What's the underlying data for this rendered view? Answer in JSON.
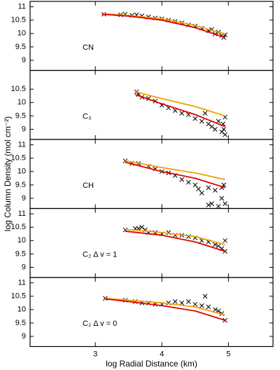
{
  "chart_data": [
    {
      "type": "scatter",
      "label": "CN",
      "xlim": [
        2.02,
        5.67
      ],
      "ylim": [
        8.62,
        11.2
      ],
      "xticks": [
        3,
        4,
        5
      ],
      "yticks": [
        9,
        9.5,
        10,
        10.5,
        11
      ],
      "series": [
        {
          "mode": "markers",
          "color": "#000000",
          "x": [
            3.13,
            3.38,
            3.45,
            3.55,
            3.62,
            3.7,
            3.8,
            3.9,
            4.0,
            4.1,
            4.2,
            4.3,
            4.4,
            4.5,
            4.6,
            4.7,
            4.75,
            4.8,
            4.85,
            4.9,
            4.93,
            4.95
          ],
          "values": [
            10.72,
            10.7,
            10.72,
            10.68,
            10.7,
            10.66,
            10.62,
            10.58,
            10.55,
            10.5,
            10.45,
            10.4,
            10.32,
            10.28,
            10.2,
            10.1,
            10.15,
            9.98,
            10.05,
            9.92,
            9.85,
            9.95
          ]
        },
        {
          "mode": "line",
          "color": "#f0a000",
          "x": [
            3.1,
            3.5,
            4,
            4.5,
            4.95
          ],
          "values": [
            10.74,
            10.68,
            10.55,
            10.3,
            9.98
          ]
        },
        {
          "mode": "line",
          "color": "#e00000",
          "x": [
            3.1,
            3.5,
            4,
            4.5,
            4.95
          ],
          "values": [
            10.72,
            10.65,
            10.5,
            10.22,
            9.85
          ]
        }
      ]
    },
    {
      "type": "scatter",
      "label": "C₃",
      "xlim": [
        2.02,
        5.67
      ],
      "ylim": [
        8.62,
        11.2
      ],
      "xticks": [
        3,
        4,
        5
      ],
      "yticks": [
        9,
        9.5,
        10,
        10.5
      ],
      "series": [
        {
          "mode": "markers",
          "color": "#000000",
          "x": [
            3.62,
            3.65,
            3.7,
            3.8,
            3.9,
            4.0,
            4.1,
            4.2,
            4.3,
            4.4,
            4.5,
            4.6,
            4.65,
            4.7,
            4.75,
            4.8,
            4.85,
            4.9,
            4.92,
            4.95,
            4.95,
            4.93
          ],
          "values": [
            10.4,
            10.3,
            10.2,
            10.15,
            10.05,
            9.9,
            9.8,
            9.7,
            9.6,
            9.55,
            9.4,
            9.3,
            9.6,
            9.2,
            9.1,
            9.0,
            9.3,
            8.9,
            9.2,
            9.45,
            8.8,
            9.0
          ]
        },
        {
          "mode": "line",
          "color": "#f0a000",
          "x": [
            3.6,
            4,
            4.5,
            4.95
          ],
          "values": [
            10.4,
            10.15,
            9.85,
            9.5
          ]
        },
        {
          "mode": "line",
          "color": "#e00000",
          "x": [
            3.6,
            4,
            4.5,
            4.95
          ],
          "values": [
            10.3,
            9.95,
            9.55,
            9.1
          ]
        }
      ]
    },
    {
      "type": "scatter",
      "label": "CH",
      "ylabel": "log Column Density (mol cm⁻²)",
      "xlim": [
        2.02,
        5.67
      ],
      "ylim": [
        8.62,
        11.2
      ],
      "xticks": [
        3,
        4,
        5
      ],
      "yticks": [
        9,
        9.5,
        10,
        10.5,
        11
      ],
      "series": [
        {
          "mode": "markers",
          "color": "#000000",
          "x": [
            3.45,
            3.55,
            3.65,
            3.8,
            3.9,
            4.0,
            4.1,
            4.2,
            4.3,
            4.4,
            4.5,
            4.55,
            4.6,
            4.7,
            4.75,
            4.8,
            4.85,
            4.9,
            4.93,
            4.95,
            4.7,
            4.9
          ],
          "values": [
            10.4,
            10.3,
            10.3,
            10.2,
            10.1,
            10.0,
            9.95,
            9.85,
            9.7,
            9.6,
            9.5,
            9.35,
            9.2,
            9.4,
            8.8,
            9.3,
            8.7,
            9.0,
            9.5,
            8.8,
            8.75,
            9.4
          ]
        },
        {
          "mode": "line",
          "color": "#f0a000",
          "x": [
            3.45,
            4,
            4.5,
            4.95
          ],
          "values": [
            10.4,
            10.15,
            9.95,
            9.7
          ]
        },
        {
          "mode": "line",
          "color": "#e00000",
          "x": [
            3.45,
            4,
            4.5,
            4.95
          ],
          "values": [
            10.35,
            10.0,
            9.75,
            9.4
          ]
        }
      ]
    },
    {
      "type": "scatter",
      "label": "C₂ Δ v = 1",
      "xlim": [
        2.02,
        5.67
      ],
      "ylim": [
        8.62,
        11.2
      ],
      "xticks": [
        3,
        4,
        5
      ],
      "yticks": [
        9,
        9.5,
        10,
        10.5,
        11
      ],
      "series": [
        {
          "mode": "markers",
          "color": "#000000",
          "x": [
            3.45,
            3.6,
            3.65,
            3.7,
            3.75,
            3.8,
            3.9,
            4.0,
            4.1,
            4.2,
            4.3,
            4.4,
            4.5,
            4.6,
            4.7,
            4.8,
            4.85,
            4.9,
            4.95,
            4.95
          ],
          "values": [
            10.4,
            10.45,
            10.45,
            10.5,
            10.4,
            10.3,
            10.3,
            10.25,
            10.3,
            10.2,
            10.2,
            10.15,
            10.1,
            10.0,
            9.95,
            9.85,
            9.8,
            9.7,
            9.6,
            10.0
          ]
        },
        {
          "mode": "line",
          "color": "#f0a000",
          "x": [
            3.45,
            4,
            4.5,
            4.95
          ],
          "values": [
            10.42,
            10.3,
            10.15,
            9.85
          ]
        },
        {
          "mode": "line",
          "color": "#e00000",
          "x": [
            3.45,
            4,
            4.5,
            4.95
          ],
          "values": [
            10.35,
            10.2,
            9.95,
            9.6
          ]
        }
      ]
    },
    {
      "type": "scatter",
      "label": "C₂ Δ v = 0",
      "xlabel": "log Radial Distance (km)",
      "xlim": [
        2.02,
        5.67
      ],
      "ylim": [
        8.62,
        11.2
      ],
      "xticks": [
        3,
        4,
        5
      ],
      "yticks": [
        9,
        9.5,
        10,
        10.5,
        11
      ],
      "series": [
        {
          "mode": "markers",
          "color": "#000000",
          "x": [
            3.15,
            3.45,
            3.6,
            3.7,
            3.8,
            3.9,
            4.0,
            4.1,
            4.2,
            4.3,
            4.4,
            4.5,
            4.6,
            4.65,
            4.7,
            4.8,
            4.85,
            4.9,
            4.95
          ],
          "values": [
            10.42,
            10.35,
            10.3,
            10.25,
            10.25,
            10.2,
            10.2,
            10.25,
            10.3,
            10.25,
            10.3,
            10.2,
            10.15,
            10.5,
            10.1,
            10.0,
            9.95,
            9.85,
            9.6
          ]
        },
        {
          "mode": "line",
          "color": "#f0a000",
          "x": [
            3.15,
            3.5,
            4,
            4.5,
            4.95
          ],
          "values": [
            10.42,
            10.35,
            10.25,
            10.1,
            9.8
          ]
        },
        {
          "mode": "line",
          "color": "#e00000",
          "x": [
            3.15,
            3.5,
            4,
            4.5,
            4.95
          ],
          "values": [
            10.4,
            10.3,
            10.15,
            9.95,
            9.6
          ]
        }
      ]
    }
  ]
}
